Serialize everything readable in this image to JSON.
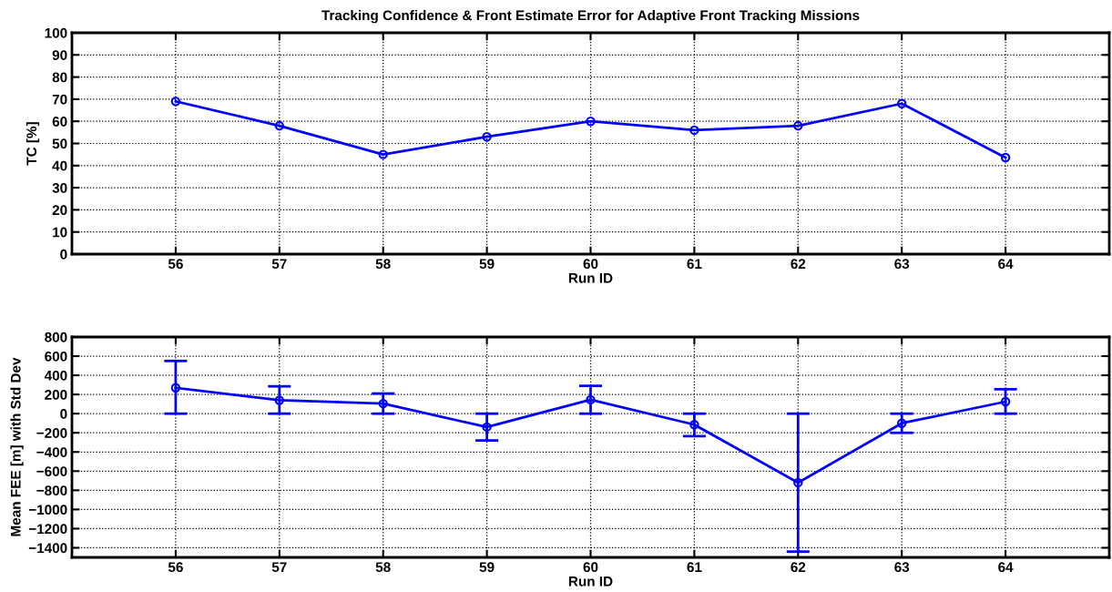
{
  "chart_data": [
    {
      "type": "line",
      "title": "Tracking Confidence & Front Estimate Error for Adaptive Front Tracking Missions",
      "xlabel": "Run ID",
      "ylabel": "TC [%]",
      "x": [
        56,
        57,
        58,
        59,
        60,
        61,
        62,
        63,
        64
      ],
      "xlim": [
        55,
        65
      ],
      "xticks": [
        56,
        57,
        58,
        59,
        60,
        61,
        62,
        63,
        64
      ],
      "ylim": [
        0,
        100
      ],
      "yticks": [
        0,
        10,
        20,
        30,
        40,
        50,
        60,
        70,
        80,
        90,
        100
      ],
      "grid": true,
      "marker": "circle",
      "line_style": "solid",
      "series": [
        {
          "color": "#0000ff",
          "values": [
            69,
            58,
            45,
            53,
            60,
            56,
            58,
            68,
            43.6
          ]
        }
      ]
    },
    {
      "type": "line",
      "xlabel": "Run ID",
      "ylabel": "Mean FEE [m] with Std Dev",
      "x": [
        56,
        57,
        58,
        59,
        60,
        61,
        62,
        63,
        64
      ],
      "xlim": [
        55,
        65
      ],
      "xticks": [
        56,
        57,
        58,
        59,
        60,
        61,
        62,
        63,
        64
      ],
      "ylim": [
        -1500,
        800
      ],
      "yticks": [
        -1400,
        -1200,
        -1000,
        -800,
        -600,
        -400,
        -200,
        0,
        200,
        400,
        600,
        800
      ],
      "grid": true,
      "marker": "circle",
      "line_style": "solid",
      "series": [
        {
          "color": "#0000ff",
          "values": [
            270,
            140,
            105,
            -140,
            145,
            -115,
            -720,
            -100,
            125
          ],
          "errors": [
            [
              0,
              550
            ],
            [
              0,
              285
            ],
            [
              0,
              210
            ],
            [
              -280,
              0
            ],
            [
              0,
              290
            ],
            [
              -235,
              0
            ],
            [
              -1440,
              0
            ],
            [
              -200,
              0
            ],
            [
              0,
              255
            ]
          ]
        }
      ]
    }
  ]
}
